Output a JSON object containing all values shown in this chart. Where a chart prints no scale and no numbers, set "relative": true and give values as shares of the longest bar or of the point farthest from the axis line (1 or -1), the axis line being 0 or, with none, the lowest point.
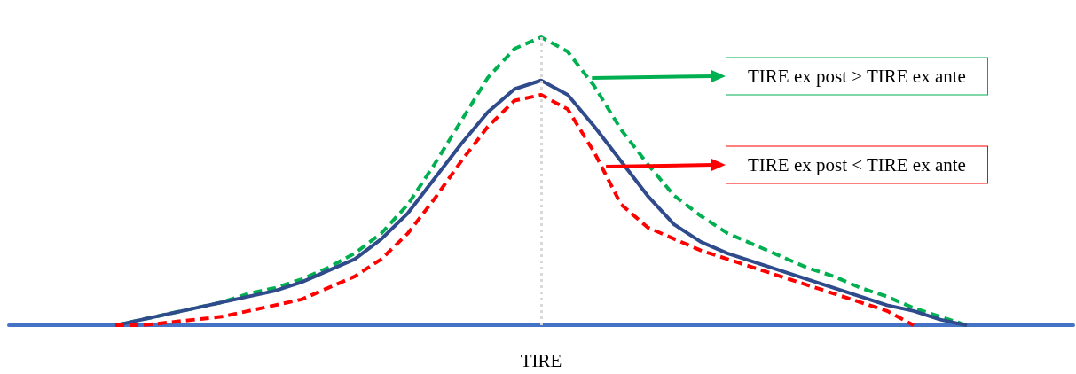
{
  "chart_data": {
    "type": "line",
    "relative": true,
    "xlabel": "TIRE",
    "marker": "none",
    "categories": [
      null,
      null,
      null,
      null,
      null,
      null,
      null,
      null,
      null,
      null,
      null,
      null,
      null,
      null,
      null,
      null,
      null,
      null,
      null,
      null,
      null,
      null,
      null,
      null,
      null,
      null,
      null,
      null,
      null,
      null,
      null,
      null,
      null,
      null,
      null,
      null,
      null,
      null,
      null,
      null,
      null
    ],
    "series": [
      {
        "color": "#00b050",
        "line_style": "dashed",
        "values": [
          null,
          null,
          null,
          null,
          0,
          0.02,
          0.04,
          0.06,
          0.08,
          0.11,
          0.13,
          0.16,
          0.2,
          0.25,
          0.32,
          0.42,
          0.56,
          0.71,
          0.86,
          0.96,
          1,
          0.95,
          0.83,
          0.68,
          0.56,
          0.45,
          0.38,
          0.32,
          0.28,
          0.24,
          0.2,
          0.17,
          0.13,
          0.1,
          0.06,
          0.03,
          0,
          null,
          null,
          null,
          null
        ]
      },
      {
        "color": "#2f4b8c",
        "line_style": "solid",
        "values": [
          null,
          null,
          null,
          null,
          0,
          0.02,
          0.04,
          0.06,
          0.08,
          0.1,
          0.12,
          0.15,
          0.19,
          0.23,
          0.3,
          0.39,
          0.51,
          0.63,
          0.74,
          0.82,
          0.85,
          0.8,
          0.69,
          0.57,
          0.45,
          0.35,
          0.29,
          0.25,
          0.22,
          0.19,
          0.16,
          0.13,
          0.1,
          0.07,
          0.05,
          0.02,
          0,
          null,
          null,
          null,
          null
        ]
      },
      {
        "color": "#ff0000",
        "line_style": "dashed",
        "values": [
          null,
          null,
          null,
          null,
          0,
          0,
          0.01,
          0.02,
          0.03,
          0.05,
          0.07,
          0.09,
          0.13,
          0.17,
          0.23,
          0.32,
          0.44,
          0.57,
          0.69,
          0.78,
          0.8,
          0.75,
          0.6,
          0.42,
          0.34,
          0.3,
          0.26,
          0.23,
          0.2,
          0.17,
          0.14,
          0.11,
          0.08,
          0.05,
          0,
          null,
          null,
          null,
          null,
          null,
          null
        ]
      }
    ],
    "annotations": [
      "TIRE ex post > TIRE ex ante",
      "TIRE ex post < TIRE ex ante"
    ]
  }
}
